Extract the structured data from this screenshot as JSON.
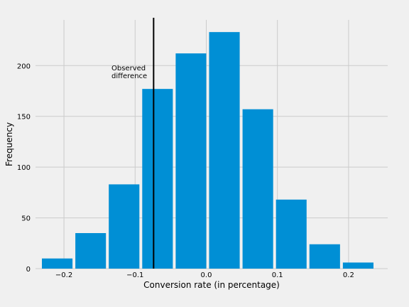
{
  "chart_data": {
    "type": "bar",
    "title": "",
    "xlabel": "Conversion rate (in percentage)",
    "ylabel": "Frequency",
    "xlim": [
      -0.24,
      0.255
    ],
    "ylim": [
      0,
      245
    ],
    "grid": true,
    "xticks": [
      -0.2,
      -0.1,
      0.0,
      0.1,
      0.2
    ],
    "xtick_labels": [
      "−0.2",
      "−0.1",
      "0.0",
      "0.1",
      "0.2"
    ],
    "yticks": [
      0,
      50,
      100,
      150,
      200
    ],
    "ytick_labels": [
      "0",
      "50",
      "100",
      "150",
      "200"
    ],
    "bin_edges": [
      -0.233,
      -0.186,
      -0.139,
      -0.092,
      -0.045,
      0.002,
      0.049,
      0.096,
      0.143,
      0.19,
      0.237
    ],
    "values": [
      10,
      35,
      83,
      177,
      212,
      233,
      157,
      68,
      24,
      6
    ],
    "bar_color": "#008fd5",
    "observed_difference": {
      "x": -0.074,
      "label_line1": "Observed",
      "label_line2": "difference",
      "line_color": "#000000"
    }
  }
}
